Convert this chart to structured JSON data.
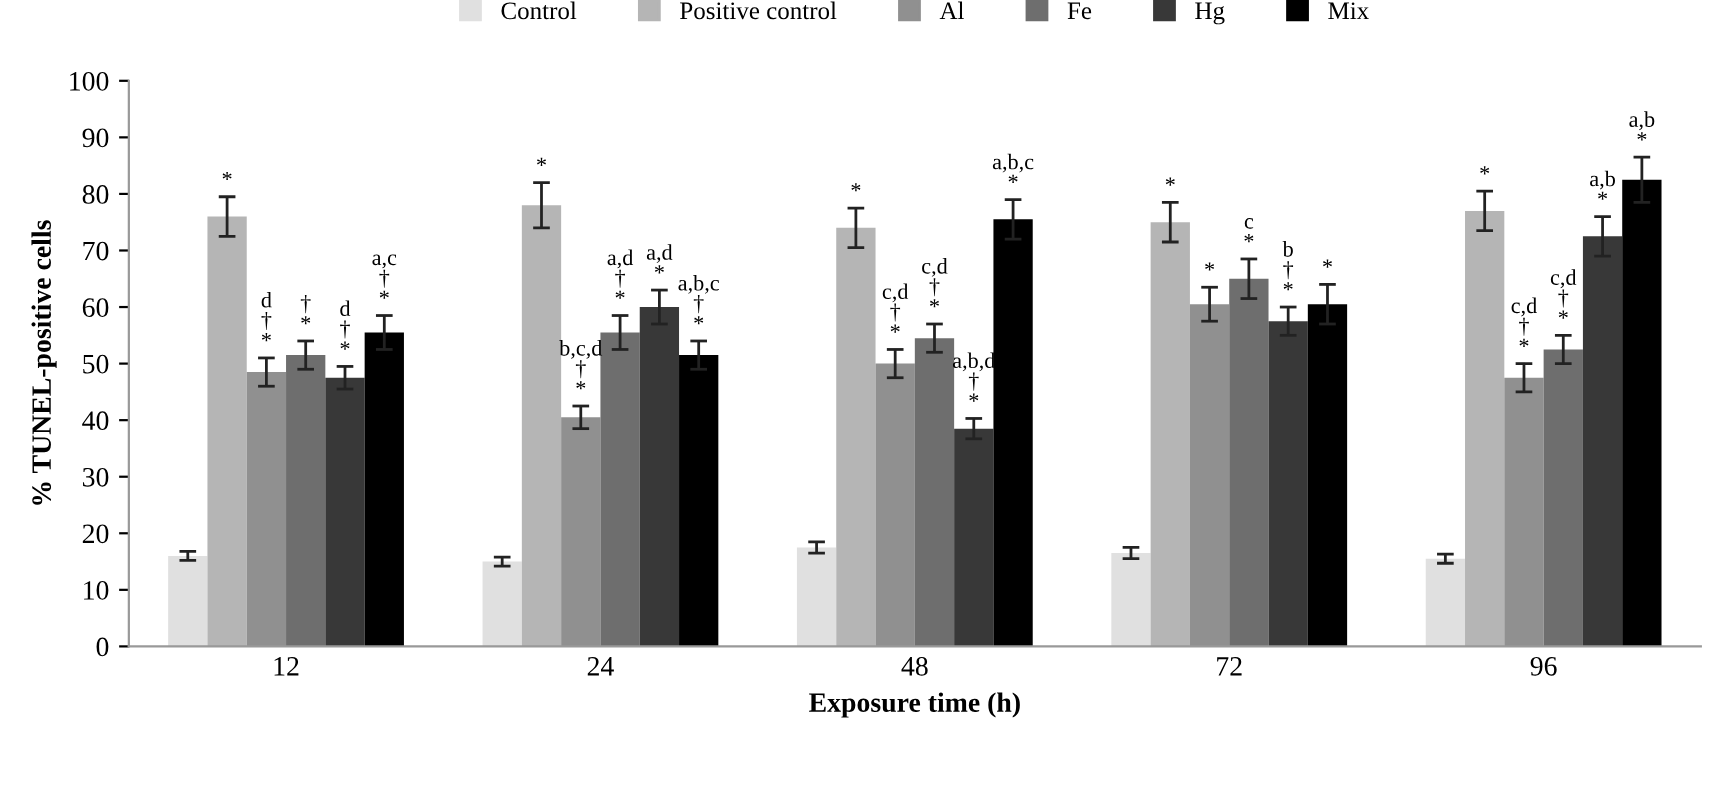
{
  "chart_data": {
    "type": "bar",
    "xlabel": "Exposure time (h)",
    "ylabel": "% TUNEL-positive cells",
    "categories": [
      "12",
      "24",
      "48",
      "72",
      "96"
    ],
    "ylim": [
      0,
      100
    ],
    "yticks": [
      0,
      10,
      20,
      30,
      40,
      50,
      60,
      70,
      80,
      90,
      100
    ],
    "grid": false,
    "legend": "top",
    "series": [
      {
        "name": "Control",
        "color": "#e0e0e0",
        "values": [
          16,
          15,
          17.5,
          16.5,
          15.5
        ],
        "errors": [
          0.8,
          0.8,
          1,
          1,
          0.8
        ]
      },
      {
        "name": "Positive control",
        "color": "#b5b5b5",
        "values": [
          76,
          78,
          74,
          75,
          77
        ],
        "errors": [
          3.5,
          4,
          3.5,
          3.5,
          3.5
        ],
        "value_labels": [
          "*",
          "*",
          "*",
          "*",
          "*"
        ]
      },
      {
        "name": "Al",
        "color": "#909090",
        "values": [
          48.5,
          40.5,
          50,
          60.5,
          47.5
        ],
        "errors": [
          2.5,
          2,
          2.5,
          3,
          2.5
        ],
        "value_labels": [
          "d\n†\n*",
          "b,c,d\n†\n*",
          "c,d\n†\n*",
          "*",
          "c,d\n†\n*"
        ]
      },
      {
        "name": "Fe",
        "color": "#6e6e6e",
        "values": [
          51.5,
          55.5,
          54.5,
          65,
          52.5
        ],
        "errors": [
          2.5,
          3,
          2.5,
          3.5,
          2.5
        ],
        "value_labels": [
          "†\n*",
          "a,d\n†\n*",
          "c,d\n†\n*",
          "c\n*",
          "c,d\n†\n*"
        ]
      },
      {
        "name": "Hg",
        "color": "#383838",
        "values": [
          47.5,
          60,
          38.5,
          57.5,
          72.5
        ],
        "errors": [
          2,
          3,
          1.8,
          2.5,
          3.5
        ],
        "value_labels": [
          "d\n†\n*",
          "a,d\n*",
          "a,b,d\n†\n*",
          "b\n†\n*",
          "a,b\n*"
        ]
      },
      {
        "name": "Mix",
        "color": "#000000",
        "values": [
          55.5,
          51.5,
          75.5,
          60.5,
          82.5
        ],
        "errors": [
          3,
          2.5,
          3.5,
          3.5,
          4
        ],
        "value_labels": [
          "a,c\n†\n*",
          "a,b,c\n†\n*",
          "a,b,c\n*",
          "*",
          "a,b\n*"
        ]
      }
    ]
  }
}
